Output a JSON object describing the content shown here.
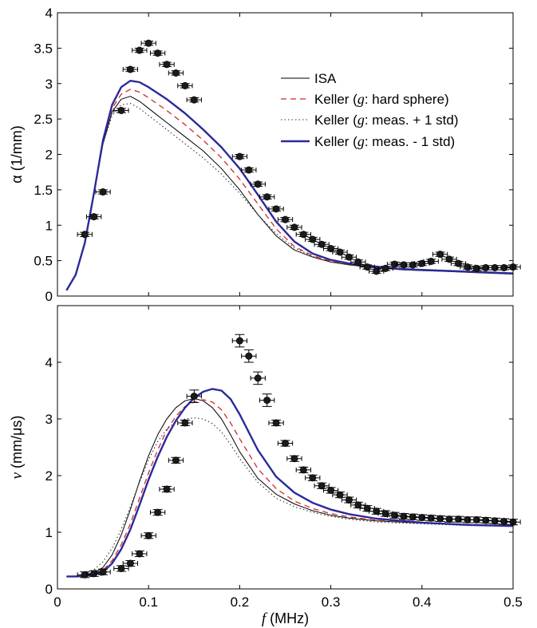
{
  "chart_data": [
    {
      "type": "line",
      "xlabel": "",
      "ylabel": "α (1/mm)",
      "xlim": [
        0,
        0.5
      ],
      "ylim": [
        0,
        4
      ],
      "xticks": [
        "0",
        "0.1",
        "0.2",
        "0.3",
        "0.4",
        "0.5"
      ],
      "yticks": [
        "0",
        "0.5",
        "1",
        "1.5",
        "2",
        "2.5",
        "3",
        "3.5",
        "4"
      ],
      "legend": {
        "placement": "top-right",
        "entries": [
          {
            "prefix": "ISA",
            "italic": "",
            "suffix": ""
          },
          {
            "prefix": "Keller (",
            "italic": "g",
            "suffix": ": hard sphere)"
          },
          {
            "prefix": "Keller (",
            "italic": "g",
            "suffix": ": meas. + 1 std)"
          },
          {
            "prefix": "Keller (",
            "italic": "g",
            "suffix": ": meas. - 1 std)"
          }
        ]
      },
      "series": [
        {
          "key": "ISA",
          "color": "#000000",
          "width": 1,
          "dash": "",
          "x": [
            0.01,
            0.02,
            0.03,
            0.04,
            0.05,
            0.06,
            0.07,
            0.08,
            0.09,
            0.1,
            0.12,
            0.14,
            0.16,
            0.18,
            0.2,
            0.22,
            0.24,
            0.26,
            0.28,
            0.3,
            0.32,
            0.34,
            0.36,
            0.38,
            0.4,
            0.42,
            0.44,
            0.46,
            0.48,
            0.5
          ],
          "y": [
            0.08,
            0.3,
            0.75,
            1.45,
            2.15,
            2.6,
            2.78,
            2.82,
            2.75,
            2.65,
            2.45,
            2.25,
            2.05,
            1.8,
            1.5,
            1.15,
            0.85,
            0.65,
            0.55,
            0.48,
            0.44,
            0.41,
            0.39,
            0.37,
            0.36,
            0.35,
            0.34,
            0.33,
            0.32,
            0.31
          ]
        },
        {
          "key": "Keller hard sphere",
          "color": "#d42a2a",
          "width": 1.3,
          "dash": "7,5",
          "x": [
            0.01,
            0.02,
            0.03,
            0.04,
            0.05,
            0.06,
            0.07,
            0.08,
            0.09,
            0.1,
            0.12,
            0.14,
            0.16,
            0.18,
            0.2,
            0.22,
            0.24,
            0.26,
            0.28,
            0.3,
            0.32,
            0.34,
            0.36,
            0.38,
            0.4,
            0.42,
            0.44,
            0.46,
            0.48,
            0.5
          ],
          "y": [
            0.08,
            0.3,
            0.75,
            1.45,
            2.2,
            2.65,
            2.85,
            2.92,
            2.88,
            2.8,
            2.62,
            2.42,
            2.2,
            1.95,
            1.65,
            1.3,
            0.95,
            0.7,
            0.57,
            0.49,
            0.45,
            0.42,
            0.4,
            0.38,
            0.37,
            0.36,
            0.35,
            0.34,
            0.33,
            0.32
          ]
        },
        {
          "key": "Keller meas +1 std",
          "color": "#333333",
          "width": 1.1,
          "dash": "1.5,3",
          "x": [
            0.01,
            0.02,
            0.03,
            0.04,
            0.05,
            0.06,
            0.07,
            0.08,
            0.09,
            0.1,
            0.12,
            0.14,
            0.16,
            0.18,
            0.2,
            0.22,
            0.24,
            0.26,
            0.28,
            0.3,
            0.32,
            0.34,
            0.36,
            0.38,
            0.4,
            0.42,
            0.44,
            0.46,
            0.48,
            0.5
          ],
          "y": [
            0.08,
            0.3,
            0.75,
            1.45,
            2.15,
            2.55,
            2.7,
            2.72,
            2.65,
            2.55,
            2.35,
            2.15,
            1.95,
            1.72,
            1.45,
            1.15,
            0.88,
            0.68,
            0.56,
            0.48,
            0.44,
            0.41,
            0.39,
            0.37,
            0.36,
            0.35,
            0.34,
            0.33,
            0.32,
            0.31
          ]
        },
        {
          "key": "Keller meas -1 std",
          "color": "#2a2a9a",
          "width": 2.4,
          "dash": "",
          "x": [
            0.01,
            0.02,
            0.03,
            0.04,
            0.05,
            0.06,
            0.07,
            0.08,
            0.09,
            0.1,
            0.12,
            0.14,
            0.16,
            0.18,
            0.2,
            0.22,
            0.24,
            0.26,
            0.28,
            0.3,
            0.32,
            0.34,
            0.36,
            0.38,
            0.4,
            0.42,
            0.44,
            0.46,
            0.48,
            0.5
          ],
          "y": [
            0.08,
            0.3,
            0.75,
            1.45,
            2.2,
            2.7,
            2.95,
            3.04,
            3.02,
            2.95,
            2.78,
            2.58,
            2.35,
            2.1,
            1.8,
            1.43,
            1.05,
            0.77,
            0.6,
            0.51,
            0.46,
            0.43,
            0.4,
            0.38,
            0.37,
            0.36,
            0.35,
            0.34,
            0.33,
            0.32
          ]
        }
      ],
      "measured": {
        "x": [
          0.03,
          0.04,
          0.05,
          0.07,
          0.08,
          0.09,
          0.1,
          0.11,
          0.12,
          0.13,
          0.14,
          0.15,
          0.2,
          0.21,
          0.22,
          0.23,
          0.24,
          0.25,
          0.26,
          0.27,
          0.28,
          0.29,
          0.3,
          0.31,
          0.32,
          0.33,
          0.34,
          0.35,
          0.36,
          0.37,
          0.38,
          0.39,
          0.4,
          0.41,
          0.42,
          0.43,
          0.44,
          0.45,
          0.46,
          0.47,
          0.48,
          0.49,
          0.5
        ],
        "y": [
          0.87,
          1.12,
          1.47,
          2.62,
          3.2,
          3.47,
          3.57,
          3.43,
          3.27,
          3.15,
          2.97,
          2.77,
          1.97,
          1.78,
          1.58,
          1.4,
          1.23,
          1.08,
          0.97,
          0.87,
          0.8,
          0.73,
          0.67,
          0.62,
          0.55,
          0.48,
          0.41,
          0.35,
          0.39,
          0.45,
          0.44,
          0.44,
          0.46,
          0.49,
          0.59,
          0.52,
          0.46,
          0.41,
          0.39,
          0.4,
          0.4,
          0.4,
          0.41
        ],
        "xerr": 0.008,
        "yerr": 0.03
      }
    },
    {
      "type": "line",
      "xlabel_italic": "f",
      "xlabel_rest": " (MHz)",
      "ylabel_italic": "v",
      "ylabel_rest": " (mm/μs)",
      "xlim": [
        0,
        0.5
      ],
      "ylim": [
        0,
        5
      ],
      "xticks": [
        "0",
        "0.1",
        "0.2",
        "0.3",
        "0.4",
        "0.5"
      ],
      "yticks": [
        "0",
        "1",
        "2",
        "3",
        "4"
      ],
      "series": [
        {
          "key": "ISA",
          "color": "#000000",
          "width": 1,
          "dash": "",
          "x": [
            0.01,
            0.02,
            0.03,
            0.04,
            0.05,
            0.06,
            0.07,
            0.08,
            0.09,
            0.1,
            0.11,
            0.12,
            0.13,
            0.14,
            0.15,
            0.16,
            0.17,
            0.18,
            0.19,
            0.2,
            0.22,
            0.24,
            0.26,
            0.28,
            0.3,
            0.32,
            0.35,
            0.4,
            0.45,
            0.5
          ],
          "y": [
            0.22,
            0.22,
            0.24,
            0.28,
            0.38,
            0.6,
            0.95,
            1.4,
            1.9,
            2.35,
            2.72,
            3.0,
            3.2,
            3.32,
            3.36,
            3.32,
            3.2,
            3.0,
            2.72,
            2.42,
            1.95,
            1.67,
            1.5,
            1.38,
            1.3,
            1.25,
            1.2,
            1.16,
            1.13,
            1.11
          ]
        },
        {
          "key": "Keller hard sphere",
          "color": "#d42a2a",
          "width": 1.3,
          "dash": "7,5",
          "x": [
            0.01,
            0.02,
            0.03,
            0.04,
            0.05,
            0.06,
            0.07,
            0.08,
            0.09,
            0.1,
            0.11,
            0.12,
            0.13,
            0.14,
            0.15,
            0.16,
            0.17,
            0.18,
            0.19,
            0.2,
            0.22,
            0.24,
            0.26,
            0.28,
            0.3,
            0.32,
            0.35,
            0.4,
            0.45,
            0.5
          ],
          "y": [
            0.22,
            0.22,
            0.23,
            0.26,
            0.33,
            0.5,
            0.78,
            1.15,
            1.6,
            2.05,
            2.45,
            2.8,
            3.05,
            3.22,
            3.3,
            3.34,
            3.3,
            3.16,
            2.93,
            2.65,
            2.12,
            1.77,
            1.55,
            1.42,
            1.33,
            1.27,
            1.21,
            1.17,
            1.14,
            1.12
          ]
        },
        {
          "key": "Keller meas +1 std",
          "color": "#333333",
          "width": 1.1,
          "dash": "1.5,3",
          "x": [
            0.01,
            0.02,
            0.03,
            0.04,
            0.05,
            0.06,
            0.07,
            0.08,
            0.09,
            0.1,
            0.11,
            0.12,
            0.13,
            0.14,
            0.15,
            0.16,
            0.17,
            0.18,
            0.19,
            0.2,
            0.22,
            0.24,
            0.26,
            0.28,
            0.3,
            0.32,
            0.35,
            0.4,
            0.45,
            0.5
          ],
          "y": [
            0.22,
            0.23,
            0.27,
            0.34,
            0.48,
            0.72,
            1.05,
            1.45,
            1.88,
            2.28,
            2.6,
            2.82,
            2.95,
            3.0,
            3.02,
            3.0,
            2.92,
            2.77,
            2.55,
            2.3,
            1.88,
            1.6,
            1.45,
            1.35,
            1.28,
            1.23,
            1.18,
            1.15,
            1.12,
            1.11
          ]
        },
        {
          "key": "Keller meas -1 std",
          "color": "#2a2a9a",
          "width": 2.4,
          "dash": "",
          "x": [
            0.01,
            0.02,
            0.03,
            0.04,
            0.05,
            0.06,
            0.07,
            0.08,
            0.09,
            0.1,
            0.11,
            0.12,
            0.13,
            0.14,
            0.15,
            0.16,
            0.17,
            0.18,
            0.19,
            0.2,
            0.22,
            0.24,
            0.26,
            0.28,
            0.3,
            0.32,
            0.35,
            0.4,
            0.45,
            0.5
          ],
          "y": [
            0.22,
            0.22,
            0.23,
            0.25,
            0.3,
            0.45,
            0.7,
            1.05,
            1.48,
            1.93,
            2.33,
            2.68,
            2.97,
            3.2,
            3.37,
            3.48,
            3.53,
            3.5,
            3.35,
            3.08,
            2.45,
            1.98,
            1.7,
            1.52,
            1.4,
            1.32,
            1.24,
            1.17,
            1.13,
            1.11
          ]
        }
      ],
      "measured": {
        "x": [
          0.03,
          0.04,
          0.05,
          0.07,
          0.08,
          0.09,
          0.1,
          0.11,
          0.12,
          0.13,
          0.14,
          0.15,
          0.2,
          0.21,
          0.22,
          0.23,
          0.24,
          0.25,
          0.26,
          0.27,
          0.28,
          0.29,
          0.3,
          0.31,
          0.32,
          0.33,
          0.34,
          0.35,
          0.36,
          0.37,
          0.38,
          0.39,
          0.4,
          0.41,
          0.42,
          0.43,
          0.44,
          0.45,
          0.46,
          0.47,
          0.48,
          0.49,
          0.5
        ],
        "y": [
          0.25,
          0.27,
          0.3,
          0.36,
          0.45,
          0.62,
          0.94,
          1.35,
          1.76,
          2.27,
          2.93,
          3.4,
          4.38,
          4.11,
          3.72,
          3.33,
          2.93,
          2.57,
          2.3,
          2.1,
          1.96,
          1.82,
          1.74,
          1.66,
          1.57,
          1.48,
          1.42,
          1.37,
          1.33,
          1.3,
          1.28,
          1.27,
          1.26,
          1.25,
          1.24,
          1.23,
          1.23,
          1.22,
          1.22,
          1.21,
          1.2,
          1.19,
          1.18
        ],
        "xerr": 0.008,
        "yerr_small": 0.05,
        "yerr_large": 0.11
      }
    }
  ]
}
